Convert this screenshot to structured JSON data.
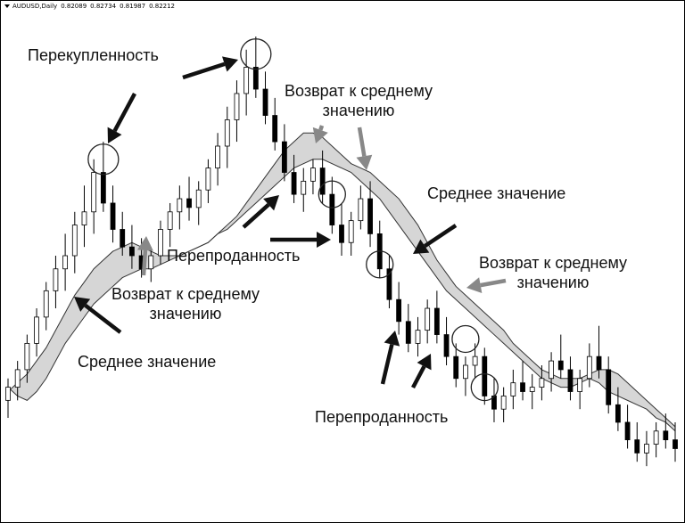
{
  "header": {
    "symbol": "AUDUSD,Daily",
    "open": "0.82089",
    "high": "0.82734",
    "low": "0.81987",
    "close": "0.82212"
  },
  "annotations": {
    "overbought": "Перекупленность",
    "revert_top": [
      "Возврат к среднему",
      "значению"
    ],
    "revert_left": [
      "Возврат к среднему",
      "значению"
    ],
    "revert_right": [
      "Возврат к среднему",
      "значению"
    ],
    "mean_right": "Среднее значение",
    "mean_left": "Среднее значение",
    "oversold_center": "Перепроданность",
    "oversold_bottom": "Перепроданность"
  },
  "chart_data": {
    "type": "candlestick",
    "series": [
      {
        "name": "fast_ma",
        "values": [
          0.19,
          0.21,
          0.23,
          0.26,
          0.29,
          0.33,
          0.37,
          0.41,
          0.44,
          0.47,
          0.49,
          0.51,
          0.52,
          0.53,
          0.52,
          0.51,
          0.5,
          0.5,
          0.5,
          0.51,
          0.52,
          0.53,
          0.55,
          0.57,
          0.59,
          0.62,
          0.65,
          0.68,
          0.71,
          0.74,
          0.76,
          0.78,
          0.78,
          0.77,
          0.75,
          0.73,
          0.71,
          0.7,
          0.69,
          0.67,
          0.65,
          0.63,
          0.6,
          0.57,
          0.53,
          0.49,
          0.46,
          0.43,
          0.41,
          0.39,
          0.37,
          0.35,
          0.33,
          0.3,
          0.28,
          0.26,
          0.24,
          0.23,
          0.22,
          0.22,
          0.22,
          0.23,
          0.24,
          0.24,
          0.23,
          0.21,
          0.19,
          0.17,
          0.15,
          0.13,
          0.11
        ]
      },
      {
        "name": "slow_ma",
        "values": [
          0.2,
          0.18,
          0.17,
          0.19,
          0.22,
          0.26,
          0.3,
          0.33,
          0.36,
          0.39,
          0.41,
          0.43,
          0.45,
          0.46,
          0.47,
          0.47,
          0.48,
          0.49,
          0.5,
          0.51,
          0.52,
          0.53,
          0.55,
          0.56,
          0.58,
          0.6,
          0.62,
          0.64,
          0.66,
          0.68,
          0.7,
          0.71,
          0.72,
          0.72,
          0.71,
          0.7,
          0.69,
          0.67,
          0.65,
          0.63,
          0.6,
          0.57,
          0.54,
          0.51,
          0.48,
          0.45,
          0.42,
          0.4,
          0.38,
          0.36,
          0.34,
          0.32,
          0.3,
          0.28,
          0.26,
          0.24,
          0.22,
          0.21,
          0.2,
          0.2,
          0.21,
          0.22,
          0.21,
          0.19,
          0.18,
          0.17,
          0.16,
          0.15,
          0.13,
          0.12,
          0.1
        ]
      },
      {
        "name": "candles",
        "ohlc": [
          [
            0.17,
            0.22,
            0.13,
            0.2
          ],
          [
            0.2,
            0.26,
            0.17,
            0.24
          ],
          [
            0.24,
            0.32,
            0.21,
            0.3
          ],
          [
            0.3,
            0.38,
            0.27,
            0.36
          ],
          [
            0.36,
            0.44,
            0.33,
            0.42
          ],
          [
            0.42,
            0.5,
            0.38,
            0.47
          ],
          [
            0.47,
            0.55,
            0.42,
            0.5
          ],
          [
            0.5,
            0.6,
            0.46,
            0.57
          ],
          [
            0.57,
            0.66,
            0.52,
            0.6
          ],
          [
            0.6,
            0.72,
            0.55,
            0.69
          ],
          [
            0.69,
            0.76,
            0.6,
            0.62
          ],
          [
            0.62,
            0.66,
            0.53,
            0.56
          ],
          [
            0.56,
            0.6,
            0.5,
            0.52
          ],
          [
            0.52,
            0.57,
            0.47,
            0.5
          ],
          [
            0.5,
            0.54,
            0.45,
            0.47
          ],
          [
            0.47,
            0.52,
            0.44,
            0.5
          ],
          [
            0.5,
            0.58,
            0.48,
            0.56
          ],
          [
            0.56,
            0.62,
            0.52,
            0.6
          ],
          [
            0.6,
            0.66,
            0.56,
            0.63
          ],
          [
            0.63,
            0.68,
            0.58,
            0.61
          ],
          [
            0.61,
            0.67,
            0.57,
            0.65
          ],
          [
            0.65,
            0.72,
            0.62,
            0.7
          ],
          [
            0.7,
            0.78,
            0.66,
            0.75
          ],
          [
            0.75,
            0.84,
            0.7,
            0.81
          ],
          [
            0.81,
            0.9,
            0.76,
            0.87
          ],
          [
            0.87,
            0.97,
            0.82,
            0.93
          ],
          [
            0.93,
            1.0,
            0.86,
            0.88
          ],
          [
            0.88,
            0.92,
            0.8,
            0.82
          ],
          [
            0.82,
            0.86,
            0.74,
            0.76
          ],
          [
            0.76,
            0.8,
            0.67,
            0.69
          ],
          [
            0.69,
            0.73,
            0.62,
            0.64
          ],
          [
            0.64,
            0.7,
            0.6,
            0.67
          ],
          [
            0.67,
            0.72,
            0.64,
            0.7
          ],
          [
            0.7,
            0.74,
            0.62,
            0.64
          ],
          [
            0.64,
            0.68,
            0.55,
            0.57
          ],
          [
            0.57,
            0.62,
            0.5,
            0.53
          ],
          [
            0.53,
            0.6,
            0.5,
            0.58
          ],
          [
            0.58,
            0.66,
            0.56,
            0.63
          ],
          [
            0.63,
            0.67,
            0.52,
            0.55
          ],
          [
            0.55,
            0.58,
            0.45,
            0.47
          ],
          [
            0.47,
            0.5,
            0.38,
            0.4
          ],
          [
            0.4,
            0.44,
            0.32,
            0.35
          ],
          [
            0.35,
            0.39,
            0.28,
            0.3
          ],
          [
            0.3,
            0.36,
            0.27,
            0.33
          ],
          [
            0.33,
            0.4,
            0.3,
            0.38
          ],
          [
            0.38,
            0.42,
            0.3,
            0.32
          ],
          [
            0.32,
            0.36,
            0.25,
            0.27
          ],
          [
            0.27,
            0.3,
            0.2,
            0.22
          ],
          [
            0.22,
            0.27,
            0.18,
            0.25
          ],
          [
            0.25,
            0.3,
            0.22,
            0.27
          ],
          [
            0.27,
            0.29,
            0.16,
            0.18
          ],
          [
            0.18,
            0.22,
            0.12,
            0.15
          ],
          [
            0.15,
            0.2,
            0.12,
            0.18
          ],
          [
            0.18,
            0.24,
            0.15,
            0.21
          ],
          [
            0.21,
            0.26,
            0.17,
            0.19
          ],
          [
            0.19,
            0.23,
            0.15,
            0.2
          ],
          [
            0.2,
            0.25,
            0.17,
            0.22
          ],
          [
            0.22,
            0.28,
            0.19,
            0.26
          ],
          [
            0.26,
            0.32,
            0.22,
            0.24
          ],
          [
            0.24,
            0.27,
            0.17,
            0.19
          ],
          [
            0.19,
            0.24,
            0.15,
            0.22
          ],
          [
            0.22,
            0.3,
            0.2,
            0.27
          ],
          [
            0.27,
            0.34,
            0.22,
            0.24
          ],
          [
            0.24,
            0.27,
            0.14,
            0.16
          ],
          [
            0.16,
            0.2,
            0.1,
            0.12
          ],
          [
            0.12,
            0.16,
            0.06,
            0.08
          ],
          [
            0.08,
            0.12,
            0.03,
            0.05
          ],
          [
            0.05,
            0.1,
            0.02,
            0.07
          ],
          [
            0.07,
            0.12,
            0.04,
            0.1
          ],
          [
            0.1,
            0.14,
            0.06,
            0.08
          ],
          [
            0.08,
            0.12,
            0.03,
            0.06
          ]
        ]
      }
    ],
    "ylim": [
      0,
      1
    ],
    "grid": false
  }
}
